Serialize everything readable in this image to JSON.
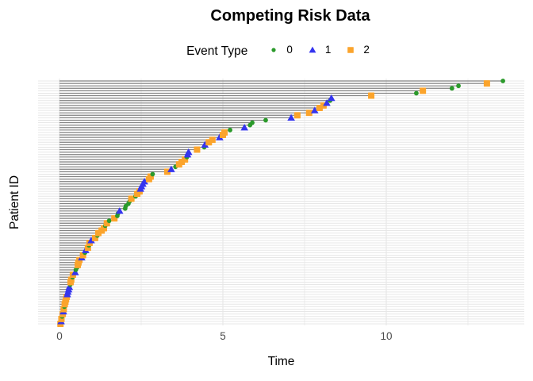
{
  "chart_data": {
    "type": "scatter",
    "subtype": "competing-risk-event-plot",
    "title": "Competing Risk Data",
    "xlabel": "Time",
    "ylabel": "Patient ID",
    "xlim": [
      0,
      14.2
    ],
    "x_ticks": [
      0,
      5,
      10
    ],
    "x_minor_ticks": [
      2.5,
      7.5,
      12.5
    ],
    "grid": "on",
    "legend": {
      "title": "Event Type",
      "position": "top",
      "entries": [
        {
          "label": "0",
          "marker": "circle",
          "color": "#2b9a2b"
        },
        {
          "label": "1",
          "marker": "triangle",
          "color": "#3535ef"
        },
        {
          "label": "2",
          "marker": "square",
          "color": "#fba42c"
        }
      ]
    },
    "colors": {
      "segment": "#828282",
      "gridline_major": "#e3e3e3",
      "gridline_minor": "#ededed",
      "row_line": "#e7e7e7",
      "axis_text": "#4d4d4d"
    },
    "series_format": [
      "time",
      "event_type"
    ],
    "patients_time_event": [
      [
        0.03,
        2
      ],
      [
        0.05,
        1
      ],
      [
        0.06,
        2
      ],
      [
        0.08,
        0
      ],
      [
        0.1,
        2
      ],
      [
        0.12,
        1
      ],
      [
        0.13,
        2
      ],
      [
        0.15,
        0
      ],
      [
        0.16,
        2
      ],
      [
        0.18,
        2
      ],
      [
        0.2,
        2
      ],
      [
        0.22,
        2
      ],
      [
        0.24,
        1
      ],
      [
        0.26,
        1
      ],
      [
        0.28,
        1
      ],
      [
        0.3,
        1
      ],
      [
        0.33,
        0
      ],
      [
        0.34,
        2
      ],
      [
        0.36,
        2
      ],
      [
        0.4,
        0
      ],
      [
        0.41,
        2
      ],
      [
        0.48,
        1
      ],
      [
        0.5,
        0
      ],
      [
        0.54,
        0
      ],
      [
        0.56,
        2
      ],
      [
        0.58,
        2
      ],
      [
        0.61,
        2
      ],
      [
        0.68,
        1
      ],
      [
        0.72,
        2
      ],
      [
        0.78,
        0
      ],
      [
        0.8,
        1
      ],
      [
        0.87,
        2
      ],
      [
        0.9,
        0
      ],
      [
        0.92,
        2
      ],
      [
        0.97,
        1
      ],
      [
        1.09,
        2
      ],
      [
        1.16,
        0
      ],
      [
        1.19,
        2
      ],
      [
        1.29,
        2
      ],
      [
        1.36,
        2
      ],
      [
        1.4,
        0
      ],
      [
        1.45,
        2
      ],
      [
        1.52,
        0
      ],
      [
        1.68,
        2
      ],
      [
        1.77,
        0
      ],
      [
        1.79,
        0
      ],
      [
        1.84,
        1
      ],
      [
        2.01,
        0
      ],
      [
        2.03,
        0
      ],
      [
        2.11,
        0
      ],
      [
        2.15,
        0
      ],
      [
        2.2,
        2
      ],
      [
        2.33,
        0
      ],
      [
        2.38,
        2
      ],
      [
        2.45,
        2
      ],
      [
        2.48,
        1
      ],
      [
        2.51,
        1
      ],
      [
        2.55,
        1
      ],
      [
        2.6,
        1
      ],
      [
        2.74,
        2
      ],
      [
        2.79,
        2
      ],
      [
        2.85,
        0
      ],
      [
        3.3,
        2
      ],
      [
        3.42,
        1
      ],
      [
        3.55,
        0
      ],
      [
        3.66,
        2
      ],
      [
        3.74,
        2
      ],
      [
        3.84,
        2
      ],
      [
        3.9,
        0
      ],
      [
        3.92,
        1
      ],
      [
        3.95,
        1
      ],
      [
        4.21,
        2
      ],
      [
        4.43,
        0
      ],
      [
        4.45,
        1
      ],
      [
        4.57,
        2
      ],
      [
        4.68,
        2
      ],
      [
        4.9,
        1
      ],
      [
        5.0,
        2
      ],
      [
        5.05,
        2
      ],
      [
        5.22,
        0
      ],
      [
        5.66,
        1
      ],
      [
        5.83,
        0
      ],
      [
        5.9,
        0
      ],
      [
        6.31,
        0
      ],
      [
        7.09,
        1
      ],
      [
        7.28,
        2
      ],
      [
        7.64,
        2
      ],
      [
        7.81,
        1
      ],
      [
        7.96,
        2
      ],
      [
        8.08,
        2
      ],
      [
        8.18,
        1
      ],
      [
        8.28,
        0
      ],
      [
        8.32,
        1
      ],
      [
        9.54,
        2
      ],
      [
        10.92,
        0
      ],
      [
        11.12,
        2
      ],
      [
        12.01,
        0
      ],
      [
        12.21,
        0
      ],
      [
        13.08,
        2
      ],
      [
        13.57,
        0
      ]
    ]
  }
}
